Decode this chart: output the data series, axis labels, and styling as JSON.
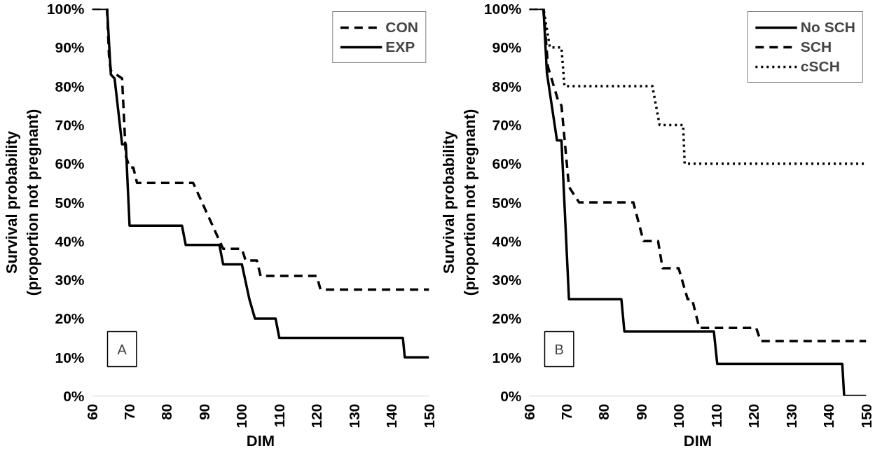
{
  "chart_data": [
    {
      "type": "line",
      "xlabel": "DIM",
      "ylabel": "Survival probability\n(proportion not pregnant)",
      "xlim": [
        60,
        150
      ],
      "xticks": [
        60,
        70,
        80,
        90,
        100,
        110,
        120,
        130,
        140,
        150
      ],
      "ylim": [
        0,
        100
      ],
      "yticks": [
        {
          "value": 0,
          "label": "0%"
        },
        {
          "value": 10,
          "label": "10%"
        },
        {
          "value": 20,
          "label": "20%"
        },
        {
          "value": 30,
          "label": "30%"
        },
        {
          "value": 40,
          "label": "40%"
        },
        {
          "value": 50,
          "label": "50%"
        },
        {
          "value": 60,
          "label": "60%"
        },
        {
          "value": 70,
          "label": "70%"
        },
        {
          "value": 80,
          "label": "80%"
        },
        {
          "value": 90,
          "label": "90%"
        },
        {
          "value": 100,
          "label": "100%"
        }
      ],
      "grid": false,
      "legend": "top right",
      "annotations": [
        "A"
      ],
      "series": [
        {
          "name": "CON",
          "color": "#000000",
          "line_style": "dashed",
          "x": [
            60,
            64,
            64.5,
            65,
            68,
            69,
            70,
            71,
            72,
            87,
            95,
            100,
            101,
            104,
            105,
            120,
            121,
            150
          ],
          "values": [
            100,
            100,
            88,
            84,
            82,
            62,
            59,
            59,
            55,
            55,
            38,
            38,
            35,
            35,
            31,
            31,
            27.5,
            27.5
          ]
        },
        {
          "name": "EXP",
          "color": "#000000",
          "line_style": "solid",
          "x": [
            60,
            64,
            65,
            66,
            68,
            69,
            70,
            84,
            85,
            94,
            95,
            100,
            102,
            103.5,
            109,
            110,
            143,
            143.5,
            150
          ],
          "values": [
            100,
            100,
            83,
            82,
            65,
            65,
            44,
            44,
            39,
            39,
            34,
            34,
            25,
            20,
            20,
            15,
            15,
            10,
            10
          ]
        }
      ]
    },
    {
      "type": "line",
      "xlabel": "DIM",
      "ylabel": "Survival probability\n(proportion not pregnant)",
      "xlim": [
        60,
        150
      ],
      "xticks": [
        60,
        70,
        80,
        90,
        100,
        110,
        120,
        130,
        140,
        150
      ],
      "ylim": [
        0,
        100
      ],
      "yticks": [
        {
          "value": 0,
          "label": "0%"
        },
        {
          "value": 10,
          "label": "10%"
        },
        {
          "value": 20,
          "label": "20%"
        },
        {
          "value": 30,
          "label": "30%"
        },
        {
          "value": 40,
          "label": "40%"
        },
        {
          "value": 50,
          "label": "50%"
        },
        {
          "value": 60,
          "label": "60%"
        },
        {
          "value": 70,
          "label": "70%"
        },
        {
          "value": 80,
          "label": "80%"
        },
        {
          "value": 90,
          "label": "90%"
        },
        {
          "value": 100,
          "label": "100%"
        }
      ],
      "grid": false,
      "legend": "top right",
      "annotations": [
        "B"
      ],
      "series": [
        {
          "name": "No SCH",
          "color": "#000000",
          "line_style": "solid",
          "x": [
            60,
            63.8,
            64.7,
            67.4,
            68.6,
            70.6,
            84.6,
            85.4,
            109.3,
            110.2,
            143.6,
            144.1,
            150
          ],
          "values": [
            100,
            100,
            83.5,
            66,
            66,
            25,
            25,
            16.7,
            16.7,
            8.3,
            8.3,
            0,
            0
          ]
        },
        {
          "name": "SCH",
          "color": "#000000",
          "line_style": "dashed",
          "x": [
            60,
            63.8,
            65,
            67.8,
            68.6,
            70.6,
            73.3,
            87.8,
            90.5,
            94.4,
            95.6,
            99.9,
            102.3,
            103.5,
            105.4,
            120.6,
            121.8,
            150
          ],
          "values": [
            100,
            100,
            85,
            76,
            75,
            54,
            50,
            50,
            40,
            40,
            33,
            33,
            25,
            25,
            17.6,
            17.6,
            14.2,
            14.2
          ]
        },
        {
          "name": "cSCH",
          "color": "#000000",
          "line_style": "dotted",
          "x": [
            60,
            63.8,
            65.5,
            68.6,
            69.4,
            92.9,
            94.8,
            101.1,
            101.5,
            150
          ],
          "values": [
            100,
            100,
            90,
            90,
            80,
            80,
            70,
            70,
            60,
            60
          ]
        }
      ]
    }
  ]
}
